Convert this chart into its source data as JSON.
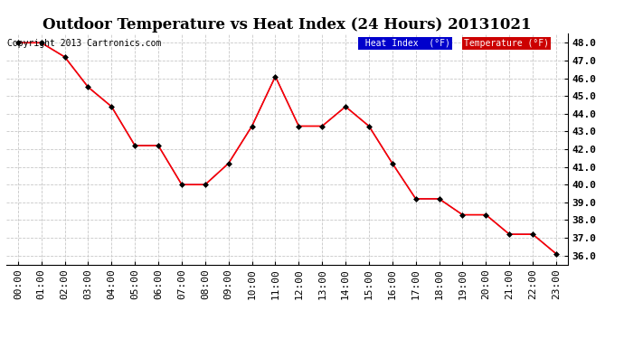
{
  "title": "Outdoor Temperature vs Heat Index (24 Hours) 20131021",
  "copyright": "Copyright 2013 Cartronics.com",
  "x_labels": [
    "00:00",
    "01:00",
    "02:00",
    "03:00",
    "04:00",
    "05:00",
    "06:00",
    "07:00",
    "08:00",
    "09:00",
    "10:00",
    "11:00",
    "12:00",
    "13:00",
    "14:00",
    "15:00",
    "16:00",
    "17:00",
    "18:00",
    "19:00",
    "20:00",
    "21:00",
    "22:00",
    "23:00"
  ],
  "temperature": [
    48.0,
    48.0,
    47.2,
    45.5,
    44.4,
    42.2,
    42.2,
    40.0,
    40.0,
    41.2,
    43.3,
    46.1,
    43.3,
    43.3,
    44.4,
    43.3,
    41.2,
    39.2,
    39.2,
    38.3,
    38.3,
    37.2,
    37.2,
    36.1
  ],
  "heat_index": [
    48.0,
    48.0,
    47.2,
    45.5,
    44.4,
    42.2,
    42.2,
    40.0,
    40.0,
    41.2,
    43.3,
    46.1,
    43.3,
    43.3,
    44.4,
    43.3,
    41.2,
    39.2,
    39.2,
    38.3,
    38.3,
    37.2,
    37.2,
    36.1
  ],
  "ylim_min": 35.5,
  "ylim_max": 48.5,
  "yticks": [
    36.0,
    37.0,
    38.0,
    39.0,
    40.0,
    41.0,
    42.0,
    43.0,
    44.0,
    45.0,
    46.0,
    47.0,
    48.0
  ],
  "bg_color": "#ffffff",
  "grid_color": "#c8c8c8",
  "line_color_temp": "#ff0000",
  "line_color_hi": "#0000aa",
  "legend_hi_bg": "#0000cc",
  "legend_temp_bg": "#cc0000",
  "legend_text_color": "#ffffff",
  "title_fontsize": 12,
  "copyright_fontsize": 7,
  "tick_fontsize": 8,
  "ytick_fontsize": 8
}
